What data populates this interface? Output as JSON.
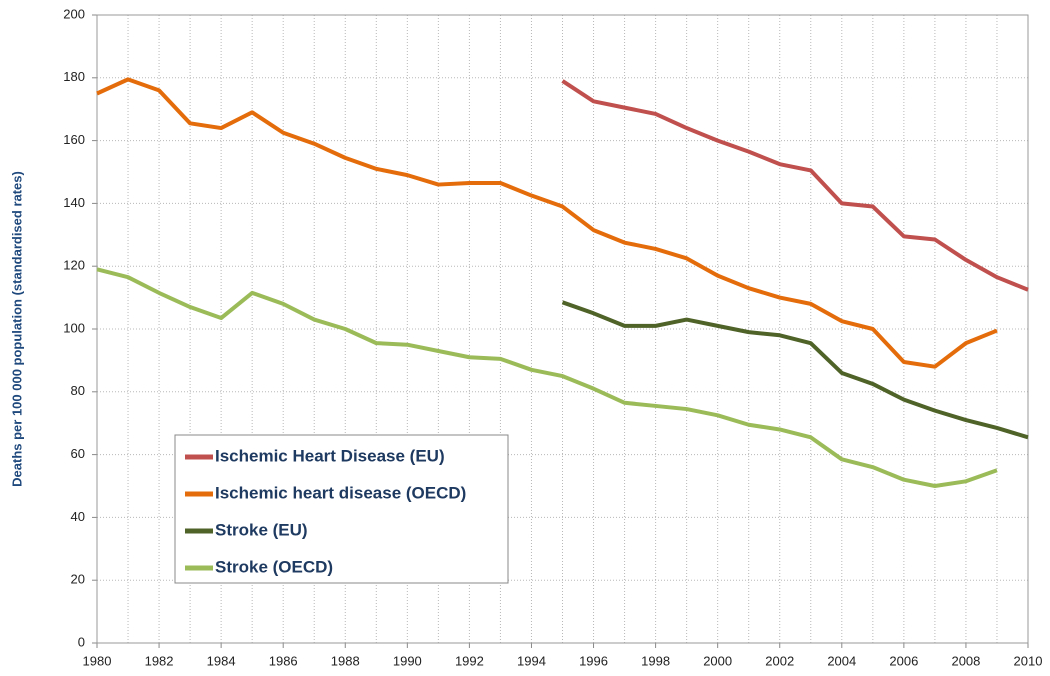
{
  "chart_data": {
    "type": "line",
    "y_label": "Deaths per 100 000 population (standardised rates)",
    "x": [
      1980,
      1981,
      1982,
      1983,
      1984,
      1985,
      1986,
      1987,
      1988,
      1989,
      1990,
      1991,
      1992,
      1993,
      1994,
      1995,
      1996,
      1997,
      1998,
      1999,
      2000,
      2001,
      2002,
      2003,
      2004,
      2005,
      2006,
      2007,
      2008,
      2009,
      2010
    ],
    "series": [
      {
        "name": "Ischemic Heart Disease (EU)",
        "color": "#c0504d",
        "values": [
          null,
          null,
          null,
          null,
          null,
          null,
          null,
          null,
          null,
          null,
          null,
          null,
          null,
          null,
          null,
          179,
          172.5,
          170.5,
          168.5,
          164,
          160,
          156.5,
          152.5,
          150.5,
          140,
          139,
          129.5,
          128.5,
          122,
          116.5,
          112.5
        ]
      },
      {
        "name": "Ischemic heart disease (OECD)",
        "color": "#e46c0a",
        "values": [
          175,
          179.5,
          176,
          165.5,
          164,
          169,
          162.5,
          159,
          154.5,
          151,
          149,
          146,
          146.5,
          146.5,
          142.5,
          139,
          131.5,
          127.5,
          125.5,
          122.5,
          117,
          113,
          110,
          108,
          102.5,
          100,
          89.5,
          88,
          95.5,
          99.5,
          null
        ]
      },
      {
        "name": "Stroke (EU)",
        "color": "#4f6228",
        "values": [
          null,
          null,
          null,
          null,
          null,
          null,
          null,
          null,
          null,
          null,
          null,
          null,
          null,
          null,
          null,
          108.5,
          105,
          101,
          101,
          103,
          101,
          99,
          98,
          95.5,
          86,
          82.5,
          77.5,
          74,
          71,
          68.5,
          65.5
        ]
      },
      {
        "name": "Stroke (OECD)",
        "color": "#9bbb59",
        "values": [
          119,
          116.5,
          111.5,
          107,
          103.5,
          111.5,
          108,
          103,
          100,
          95.5,
          95,
          93,
          91,
          90.5,
          87,
          85,
          81,
          76.5,
          75.5,
          74.5,
          72.5,
          69.5,
          68,
          65.5,
          58.5,
          56,
          52,
          50,
          51.5,
          55,
          null
        ]
      }
    ],
    "xlim": [
      1980,
      2010
    ],
    "xticks": [
      1980,
      1982,
      1984,
      1986,
      1988,
      1990,
      1992,
      1994,
      1996,
      1998,
      2000,
      2002,
      2004,
      2006,
      2008,
      2010
    ],
    "xminor_ticks": [
      1981,
      1983,
      1985,
      1987,
      1989,
      1991,
      1993,
      1995,
      1997,
      1999,
      2001,
      2003,
      2005,
      2007,
      2009
    ],
    "ylim": [
      0,
      200
    ],
    "yticks": [
      0,
      20,
      40,
      60,
      80,
      100,
      120,
      140,
      160,
      180,
      200
    ],
    "grid": true,
    "legend": "lower left"
  }
}
